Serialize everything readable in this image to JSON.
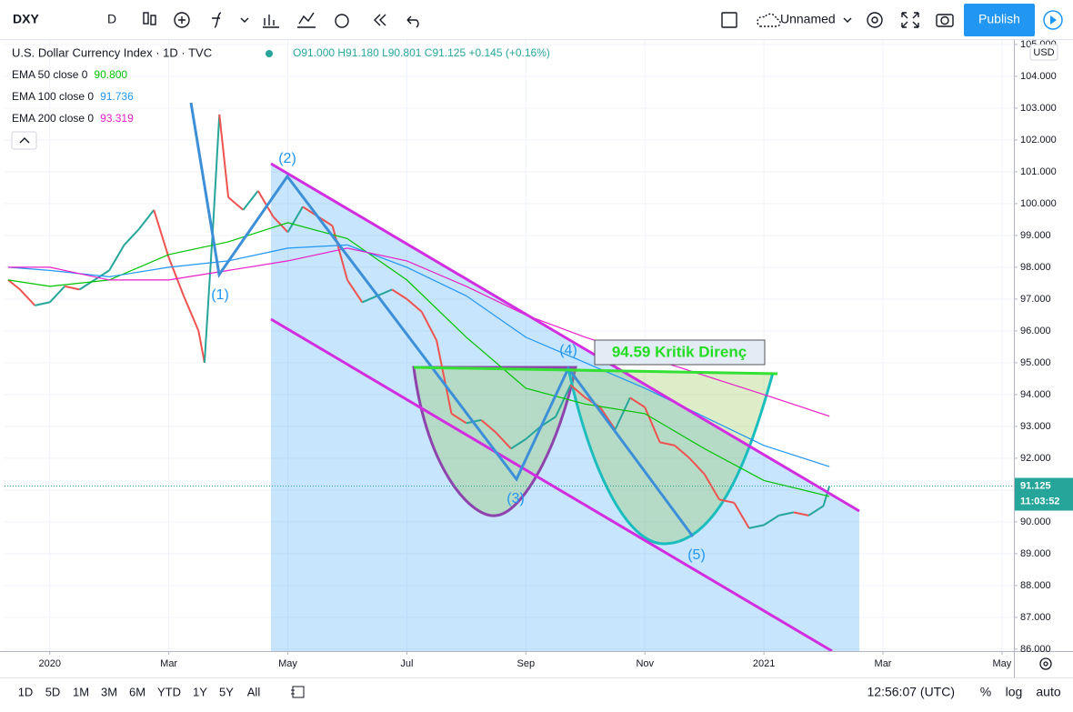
{
  "toolbar": {
    "symbol": "DXY",
    "interval": "D",
    "layout_name": "Unnamed",
    "publish": "Publish"
  },
  "legend": {
    "title": "U.S. Dollar Currency Index · 1D · TVC",
    "ohlc": "O91.000 H91.180 L90.801 C91.125 +0.145 (+0.16%)"
  },
  "annotations": {
    "waves": [
      "(1)",
      "(2)",
      "(3)",
      "(4)",
      "(5)"
    ],
    "resistance": "94.59 Kritik Direnç"
  },
  "price_axis": {
    "currency": "USD",
    "last_price": {
      "value": 91.125,
      "label": "91.125"
    },
    "countdown": "11:03:52"
  },
  "bottom_bar": {
    "ranges": [
      "1D",
      "5D",
      "1M",
      "3M",
      "6M",
      "YTD",
      "1Y",
      "5Y",
      "All"
    ],
    "clock": "12:56:07 (UTC)",
    "percent": "%",
    "log": "log",
    "auto": "auto"
  },
  "chart_data": {
    "type": "line",
    "xlim": [
      -0.76,
      16.2
    ],
    "ylim": [
      85.94,
      105.14
    ],
    "xticks": [
      {
        "value": 0,
        "label": "2020"
      },
      {
        "value": 2,
        "label": "Mar"
      },
      {
        "value": 4,
        "label": "May"
      },
      {
        "value": 6,
        "label": "Jul"
      },
      {
        "value": 8,
        "label": "Sep"
      },
      {
        "value": 10,
        "label": "Nov"
      },
      {
        "value": 12,
        "label": "2021"
      },
      {
        "value": 14,
        "label": "Mar"
      },
      {
        "value": 16,
        "label": "May"
      }
    ],
    "yticks": [
      {
        "value": 86,
        "label": "86.000"
      },
      {
        "value": 87,
        "label": "87.000"
      },
      {
        "value": 88,
        "label": "88.000"
      },
      {
        "value": 89,
        "label": "89.000"
      },
      {
        "value": 90,
        "label": "90.000"
      },
      {
        "value": 91,
        "label": "91.000"
      },
      {
        "value": 92,
        "label": "92.000"
      },
      {
        "value": 93,
        "label": "93.000"
      },
      {
        "value": 94,
        "label": "94.000"
      },
      {
        "value": 95,
        "label": "95.000"
      },
      {
        "value": 96,
        "label": "96.000"
      },
      {
        "value": 97,
        "label": "97.000"
      },
      {
        "value": 98,
        "label": "98.000"
      },
      {
        "value": 99,
        "label": "99.000"
      },
      {
        "value": 100,
        "label": "100.000"
      },
      {
        "value": 101,
        "label": "101.000"
      },
      {
        "value": 102,
        "label": "102.000"
      },
      {
        "value": 103,
        "label": "103.000"
      },
      {
        "value": 104,
        "label": "104.000"
      },
      {
        "value": 105,
        "label": "105.000"
      }
    ],
    "grid": true,
    "up_color": "#26a69a",
    "down_color": "#ef5350",
    "series": [
      {
        "name": "DXY",
        "x": [
          -0.7,
          -0.5,
          -0.25,
          0,
          0.25,
          0.5,
          0.75,
          1,
          1.25,
          1.5,
          1.75,
          2,
          2.25,
          2.5,
          2.6,
          2.75,
          2.85,
          3,
          3.25,
          3.5,
          3.75,
          4,
          4.25,
          4.5,
          4.75,
          5,
          5.25,
          5.5,
          5.75,
          6,
          6.25,
          6.5,
          6.75,
          7,
          7.25,
          7.5,
          7.75,
          8,
          8.25,
          8.5,
          8.75,
          9,
          9.25,
          9.5,
          9.75,
          10,
          10.25,
          10.5,
          10.75,
          11,
          11.25,
          11.5,
          11.75,
          12,
          12.25,
          12.5,
          12.75,
          13,
          13.1
        ],
        "values": [
          97.6,
          97.3,
          96.8,
          96.9,
          97.4,
          97.3,
          97.6,
          97.9,
          98.7,
          99.2,
          99.8,
          98.3,
          97.1,
          96.0,
          95.0,
          99.5,
          102.8,
          100.2,
          99.8,
          100.4,
          99.6,
          99.1,
          99.9,
          99.6,
          99.3,
          97.6,
          96.9,
          97.1,
          97.3,
          97.0,
          96.6,
          95.7,
          93.4,
          93.1,
          93.2,
          92.8,
          92.3,
          92.6,
          93.0,
          93.3,
          94.3,
          93.9,
          93.6,
          92.9,
          93.9,
          93.6,
          92.5,
          92.4,
          92.0,
          91.5,
          90.7,
          90.6,
          89.8,
          89.9,
          90.2,
          90.3,
          90.2,
          90.5,
          91.125
        ]
      },
      {
        "name": "EMA 50 close 0",
        "color": "#00c200",
        "legend_value": {
          "value": 90.8,
          "label": "90.800"
        },
        "x": [
          -0.7,
          0,
          1,
          2,
          3,
          4,
          5,
          6,
          7,
          8,
          9,
          10,
          11,
          12,
          13.1
        ],
        "values": [
          97.6,
          97.4,
          97.6,
          98.4,
          98.8,
          99.4,
          98.9,
          97.6,
          95.8,
          94.2,
          93.7,
          93.4,
          92.3,
          91.3,
          90.8
        ]
      },
      {
        "name": "EMA 100 close 0",
        "color": "#2196f3",
        "legend_value": {
          "value": 91.736,
          "label": "91.736"
        },
        "x": [
          -0.7,
          0,
          1,
          2,
          3,
          4,
          5,
          6,
          7,
          8,
          9,
          10,
          11,
          12,
          13.1
        ],
        "values": [
          98.0,
          97.9,
          97.7,
          98.0,
          98.2,
          98.6,
          98.7,
          98.0,
          97.1,
          95.8,
          95.0,
          94.2,
          93.3,
          92.4,
          91.736
        ]
      },
      {
        "name": "EMA 200 close 0",
        "color": "#e91ec8",
        "legend_value": {
          "value": 93.319,
          "label": "93.319"
        },
        "x": [
          -0.7,
          0,
          1,
          2,
          3,
          4,
          5,
          6,
          7,
          8,
          9,
          10,
          11,
          12,
          13.1
        ],
        "values": [
          98.0,
          98.0,
          97.6,
          97.6,
          97.9,
          98.2,
          98.6,
          98.2,
          97.4,
          96.5,
          95.8,
          95.2,
          94.6,
          94.0,
          93.319
        ]
      }
    ]
  }
}
